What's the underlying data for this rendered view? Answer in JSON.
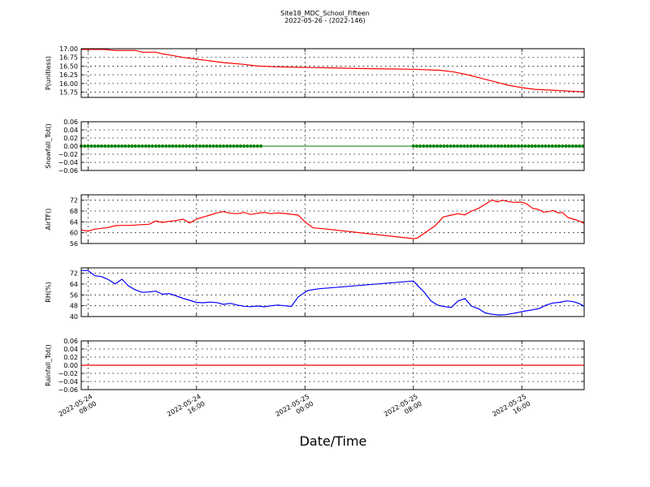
{
  "header": {
    "title": "Site18_MDC_School_Fifteen",
    "subtitle": "2022-05-26 - (2022-146)"
  },
  "xaxis": {
    "label": "Date/Time",
    "ticks": [
      {
        "line1": "2022-05-24",
        "line2": "08:00",
        "h": 0
      },
      {
        "line1": "2022-05-24",
        "line2": "16:00",
        "h": 8
      },
      {
        "line1": "2022-05-25",
        "line2": "00:00",
        "h": 16
      },
      {
        "line1": "2022-05-25",
        "line2": "08:00",
        "h": 24
      },
      {
        "line1": "2022-05-25",
        "line2": "16:00",
        "h": 32
      }
    ]
  },
  "chart_data": [
    {
      "type": "line",
      "ylabel": "P(unitless)",
      "ylim": [
        15.6,
        17.0
      ],
      "yticks": [
        "17.00",
        "16.75",
        "16.50",
        "16.25",
        "16.00",
        "15.75"
      ],
      "ytick_values": [
        17.0,
        16.75,
        16.5,
        16.25,
        16.0,
        15.75
      ],
      "color": "#ff0000",
      "grid": true,
      "points": [
        [
          -0.5,
          16.98
        ],
        [
          1.2,
          16.98
        ],
        [
          2.0,
          16.95
        ],
        [
          3.5,
          16.95
        ],
        [
          4.0,
          16.9
        ],
        [
          5.0,
          16.9
        ],
        [
          5.5,
          16.85
        ],
        [
          6.0,
          16.82
        ],
        [
          7.0,
          16.75
        ],
        [
          8.0,
          16.7
        ],
        [
          9.0,
          16.65
        ],
        [
          10.0,
          16.6
        ],
        [
          11.5,
          16.55
        ],
        [
          12.5,
          16.5
        ],
        [
          14.0,
          16.48
        ],
        [
          16.0,
          16.46
        ],
        [
          18.0,
          16.45
        ],
        [
          20.0,
          16.43
        ],
        [
          22.0,
          16.42
        ],
        [
          24.0,
          16.41
        ],
        [
          26.0,
          16.38
        ],
        [
          27.0,
          16.33
        ],
        [
          28.0,
          16.25
        ],
        [
          29.0,
          16.15
        ],
        [
          30.0,
          16.05
        ],
        [
          31.0,
          15.95
        ],
        [
          32.0,
          15.88
        ],
        [
          33.0,
          15.83
        ],
        [
          34.5,
          15.8
        ],
        [
          36.0,
          15.77
        ],
        [
          36.6,
          15.76
        ]
      ]
    },
    {
      "type": "scatter",
      "ylabel": "Snowfall_Tot()",
      "ylim": [
        -0.06,
        0.06
      ],
      "yticks": [
        "0.06",
        "0.04",
        "0.02",
        "0.00",
        "−0.02",
        "−0.04",
        "−0.06"
      ],
      "ytick_values": [
        0.06,
        0.04,
        0.02,
        0.0,
        -0.02,
        -0.04,
        -0.06
      ],
      "color": "#008000",
      "grid": true,
      "gap_line": true,
      "segments": [
        {
          "x_start": -0.5,
          "x_end": 12.8,
          "step": 0.25,
          "y": 0.0
        },
        {
          "x_start": 24.0,
          "x_end": 36.6,
          "step": 0.25,
          "y": 0.0
        }
      ]
    },
    {
      "type": "line",
      "ylabel": "AirTF()",
      "ylim": [
        56,
        74
      ],
      "yticks": [
        "72",
        "68",
        "64",
        "60",
        "56"
      ],
      "ytick_values": [
        72,
        68,
        64,
        60,
        56
      ],
      "color": "#ff0000",
      "grid": true,
      "points": [
        [
          -0.5,
          61.0
        ],
        [
          0.0,
          60.6
        ],
        [
          0.5,
          61.3
        ],
        [
          1.0,
          61.6
        ],
        [
          1.5,
          61.9
        ],
        [
          2.0,
          62.6
        ],
        [
          2.5,
          62.7
        ],
        [
          3.0,
          62.7
        ],
        [
          3.5,
          62.8
        ],
        [
          4.0,
          63.0
        ],
        [
          4.5,
          63.1
        ],
        [
          5.0,
          64.3
        ],
        [
          5.5,
          63.8
        ],
        [
          6.0,
          64.2
        ],
        [
          6.5,
          64.5
        ],
        [
          7.0,
          65.0
        ],
        [
          7.5,
          63.6
        ],
        [
          8.0,
          65.0
        ],
        [
          8.5,
          65.8
        ],
        [
          9.0,
          66.5
        ],
        [
          9.5,
          67.3
        ],
        [
          10.0,
          67.8
        ],
        [
          10.5,
          67.2
        ],
        [
          11.0,
          67.0
        ],
        [
          11.5,
          67.5
        ],
        [
          12.0,
          66.7
        ],
        [
          12.5,
          67.2
        ],
        [
          13.0,
          67.5
        ],
        [
          13.5,
          67.0
        ],
        [
          14.0,
          67.3
        ],
        [
          14.5,
          67.1
        ],
        [
          15.0,
          66.8
        ],
        [
          15.5,
          66.5
        ],
        [
          16.0,
          64.0
        ],
        [
          16.6,
          61.8
        ],
        [
          17.3,
          61.5
        ],
        [
          24.0,
          57.8
        ],
        [
          24.3,
          58.0
        ],
        [
          25.0,
          60.5
        ],
        [
          25.6,
          62.5
        ],
        [
          26.2,
          65.8
        ],
        [
          26.8,
          66.5
        ],
        [
          27.3,
          67.0
        ],
        [
          27.8,
          66.6
        ],
        [
          28.3,
          68.0
        ],
        [
          28.8,
          69.0
        ],
        [
          29.3,
          70.5
        ],
        [
          29.8,
          72.1
        ],
        [
          30.2,
          71.4
        ],
        [
          30.6,
          72.0
        ],
        [
          31.0,
          71.5
        ],
        [
          31.5,
          71.2
        ],
        [
          32.0,
          71.3
        ],
        [
          32.4,
          70.5
        ],
        [
          32.8,
          69.0
        ],
        [
          33.2,
          68.6
        ],
        [
          33.6,
          67.6
        ],
        [
          34.0,
          67.8
        ],
        [
          34.3,
          68.2
        ],
        [
          34.7,
          67.3
        ],
        [
          35.0,
          67.5
        ],
        [
          35.4,
          65.6
        ],
        [
          35.8,
          65.0
        ],
        [
          36.2,
          64.4
        ],
        [
          36.6,
          63.4
        ]
      ]
    },
    {
      "type": "line",
      "ylabel": "RH(%)",
      "ylim": [
        40,
        76
      ],
      "yticks": [
        "72",
        "64",
        "56",
        "48",
        "40"
      ],
      "ytick_values": [
        72,
        64,
        56,
        48,
        40
      ],
      "color": "#0000ff",
      "grid": true,
      "points": [
        [
          -0.5,
          74.0
        ],
        [
          0.0,
          74.0
        ],
        [
          0.5,
          70.2
        ],
        [
          1.0,
          69.5
        ],
        [
          1.5,
          67.3
        ],
        [
          2.0,
          64.1
        ],
        [
          2.5,
          67.6
        ],
        [
          3.0,
          62.5
        ],
        [
          3.5,
          59.7
        ],
        [
          4.0,
          57.9
        ],
        [
          4.5,
          58.2
        ],
        [
          5.0,
          58.8
        ],
        [
          5.5,
          56.5
        ],
        [
          6.0,
          57.0
        ],
        [
          6.5,
          55.3
        ],
        [
          7.0,
          53.5
        ],
        [
          7.5,
          52.0
        ],
        [
          8.0,
          50.5
        ],
        [
          8.5,
          50.2
        ],
        [
          9.0,
          50.7
        ],
        [
          9.5,
          50.3
        ],
        [
          10.0,
          49.0
        ],
        [
          10.5,
          49.8
        ],
        [
          11.0,
          48.5
        ],
        [
          11.5,
          47.6
        ],
        [
          12.0,
          47.3
        ],
        [
          12.5,
          47.8
        ],
        [
          13.0,
          47.2
        ],
        [
          13.5,
          48.0
        ],
        [
          14.0,
          48.5
        ],
        [
          14.5,
          48.0
        ],
        [
          15.0,
          47.5
        ],
        [
          15.5,
          54.5
        ],
        [
          16.2,
          59.2
        ],
        [
          17.0,
          60.5
        ],
        [
          24.0,
          66.3
        ],
        [
          24.4,
          62.0
        ],
        [
          24.8,
          58.0
        ],
        [
          25.3,
          51.5
        ],
        [
          25.8,
          48.4
        ],
        [
          26.3,
          47.3
        ],
        [
          26.8,
          46.8
        ],
        [
          27.3,
          51.5
        ],
        [
          27.8,
          53.3
        ],
        [
          28.3,
          47.6
        ],
        [
          28.8,
          45.8
        ],
        [
          29.3,
          42.7
        ],
        [
          29.8,
          41.7
        ],
        [
          30.3,
          41.2
        ],
        [
          30.8,
          41.4
        ],
        [
          31.3,
          42.2
        ],
        [
          31.8,
          43.2
        ],
        [
          32.3,
          44.2
        ],
        [
          32.8,
          45.0
        ],
        [
          33.3,
          46.0
        ],
        [
          33.8,
          48.5
        ],
        [
          34.3,
          50.0
        ],
        [
          34.8,
          50.5
        ],
        [
          35.3,
          51.6
        ],
        [
          35.8,
          51.0
        ],
        [
          36.2,
          49.8
        ],
        [
          36.6,
          47.6
        ]
      ]
    },
    {
      "type": "line",
      "ylabel": "Rainfall_Tot()",
      "ylim": [
        -0.06,
        0.06
      ],
      "yticks": [
        "0.06",
        "0.04",
        "0.02",
        "0.00",
        "−0.02",
        "−0.04",
        "−0.06"
      ],
      "ytick_values": [
        0.06,
        0.04,
        0.02,
        0.0,
        -0.02,
        -0.04,
        -0.06
      ],
      "color": "#ff0000",
      "grid": true,
      "points": [
        [
          -0.5,
          0.0
        ],
        [
          36.6,
          0.0
        ]
      ]
    }
  ]
}
